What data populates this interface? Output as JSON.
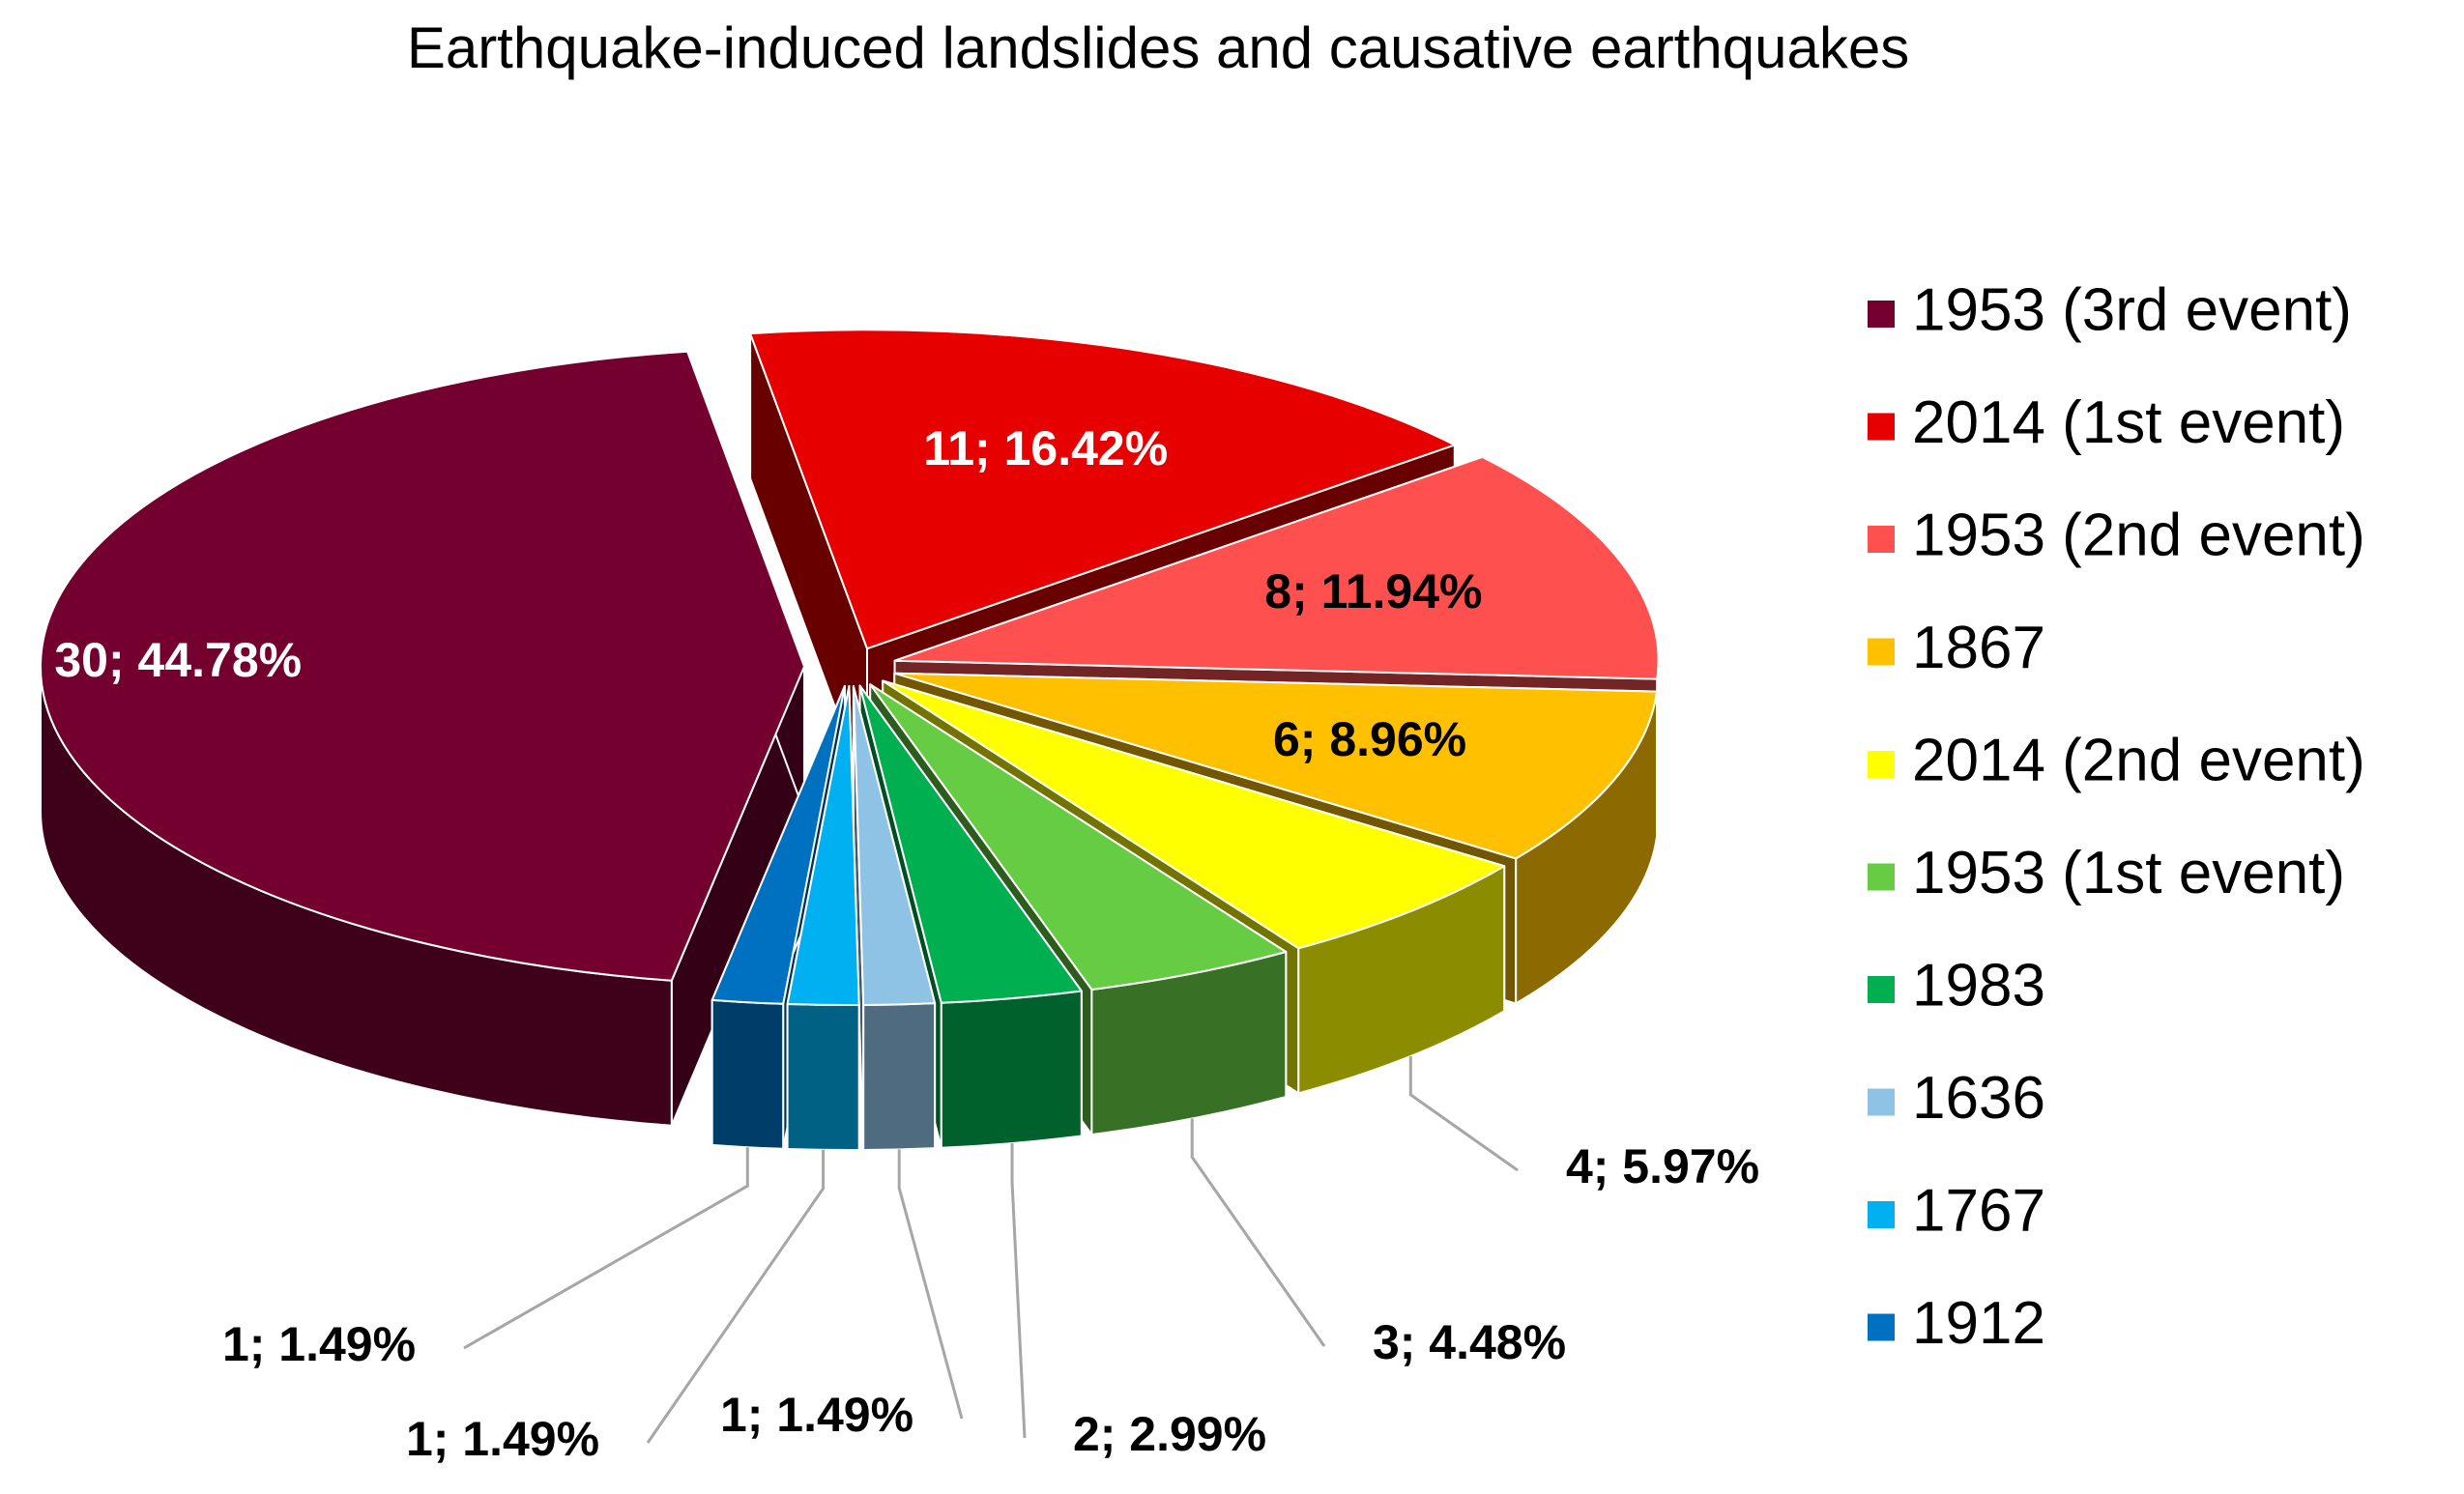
{
  "chart_data": {
    "type": "pie3d",
    "title": "Earthquake-induced landslides and causative earthquakes",
    "categories": [
      "1953 (3rd event)",
      "2014 (1st event)",
      "1953 (2nd event)",
      "1867",
      "2014 (2nd event)",
      "1953 (1st event)",
      "1983",
      "1636",
      "1767",
      "1912"
    ],
    "values": [
      30,
      11,
      8,
      6,
      4,
      3,
      2,
      1,
      1,
      1
    ],
    "value_labels": [
      "30; 44.78%",
      "11; 16.42%",
      "8; 11.94%",
      "6; 8.96%",
      "4; 5.97%",
      "3; 4.48%",
      "2; 2.99%",
      "1; 1.49%",
      "1; 1.49%",
      "1; 1.49%"
    ],
    "colors": [
      "#73002e",
      "#e60000",
      "#ff5050",
      "#ffc000",
      "#ffff00",
      "#66cc44",
      "#00b050",
      "#8fc3e6",
      "#00b0f0",
      "#0070c0"
    ],
    "legend": "right"
  }
}
